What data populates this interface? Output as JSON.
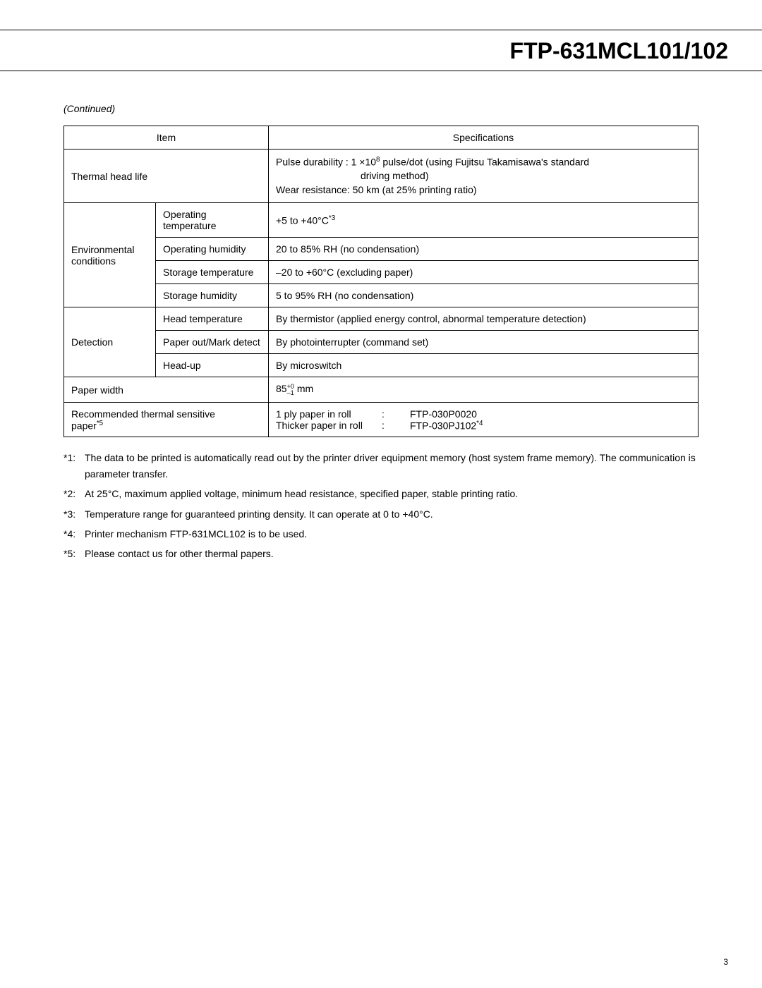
{
  "document": {
    "title": "FTP-631MCL101/102",
    "continued": "(Continued)",
    "page_number": "3",
    "border_color": "#000000",
    "background_color": "#ffffff",
    "text_color": "#000000",
    "title_fontsize": 32,
    "body_fontsize": 14,
    "footnote_fontsize": 14
  },
  "table": {
    "header_item": "Item",
    "header_spec": "Specifications",
    "rows": {
      "thermal_head": {
        "label": "Thermal head life",
        "spec_line1_prefix": "Pulse durability :  1 ×10",
        "spec_line1_sup": "8",
        "spec_line1_suffix": " pulse/dot (using Fujitsu Takamisawa's standard",
        "spec_line2": "driving method)",
        "spec_line3": "Wear resistance:  50 km (at 25% printing ratio)"
      },
      "environmental": {
        "label1": "Environmental",
        "label2": "conditions",
        "op_temp_label": "Operating temperature",
        "op_temp_spec_prefix": "+5 to +40°C",
        "op_temp_spec_sup": "*3",
        "op_hum_label": "Operating humidity",
        "op_hum_spec": "20 to 85% RH (no condensation)",
        "st_temp_label": "Storage temperature",
        "st_temp_spec": "–20 to +60°C (excluding paper)",
        "st_hum_label": "Storage humidity",
        "st_hum_spec": "5 to 95% RH (no condensation)"
      },
      "detection": {
        "label": "Detection",
        "head_temp_label": "Head temperature",
        "head_temp_spec": "By thermistor (applied energy control, abnormal temperature detection)",
        "paper_out_label": "Paper out/Mark detect",
        "paper_out_spec": "By photointerrupter (command set)",
        "head_up_label": "Head-up",
        "head_up_spec": "By microswitch"
      },
      "paper_width": {
        "label": "Paper width",
        "spec_prefix": "85",
        "spec_sup": "+0",
        "spec_sub": "–1",
        "spec_suffix": " mm"
      },
      "recommended": {
        "label_line1": "Recommended thermal sensitive",
        "label_line2_prefix": "paper",
        "label_line2_sup": "*5",
        "spec_r1_label": "1 ply paper in roll",
        "spec_r1_sep": ":",
        "spec_r1_val": "FTP-030P0020",
        "spec_r2_label": "Thicker paper in roll",
        "spec_r2_sep": ":",
        "spec_r2_val_prefix": "FTP-030PJ102",
        "spec_r2_val_sup": "*4"
      }
    }
  },
  "footnotes": {
    "n1": {
      "num": "*1:",
      "text": "The data to be printed is automatically read out by the printer driver equipment memory (host system frame memory). The communication is parameter transfer."
    },
    "n2": {
      "num": "*2:",
      "text": "At 25°C, maximum applied voltage, minimum head resistance, specified paper, stable printing ratio."
    },
    "n3": {
      "num": "*3:",
      "text": "Temperature range for guaranteed printing density. It can operate at 0 to +40°C."
    },
    "n4": {
      "num": "*4:",
      "text": "Printer mechanism FTP-631MCL102 is to be used."
    },
    "n5": {
      "num": "*5:",
      "text": "Please contact us for other thermal papers."
    }
  }
}
